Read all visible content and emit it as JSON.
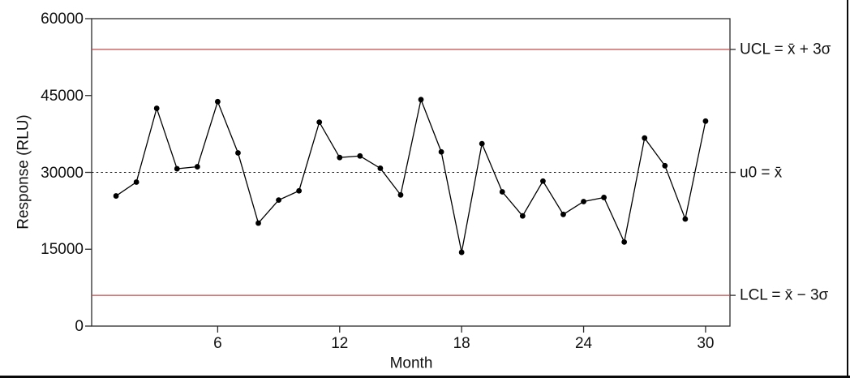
{
  "page": {
    "background": "#ffffff"
  },
  "chart_data": {
    "type": "line",
    "subtype": "control-chart",
    "title": "",
    "xlabel": "Month",
    "ylabel": "Response (RLU)",
    "x": [
      1,
      2,
      3,
      4,
      5,
      6,
      7,
      8,
      9,
      10,
      11,
      12,
      13,
      14,
      15,
      16,
      17,
      18,
      19,
      20,
      21,
      22,
      23,
      24,
      25,
      26,
      27,
      28,
      29,
      30
    ],
    "values": [
      25400,
      28100,
      42500,
      30700,
      31100,
      43800,
      33800,
      20100,
      24600,
      26400,
      39800,
      32900,
      33200,
      30800,
      25600,
      44200,
      34000,
      14400,
      35600,
      26200,
      21500,
      28300,
      21800,
      24300,
      25100,
      16400,
      36700,
      31300,
      20900,
      40000
    ],
    "x_ticks": [
      6,
      12,
      18,
      24,
      30
    ],
    "y_ticks": [
      0,
      15000,
      30000,
      45000,
      60000
    ],
    "x_range": [
      -0.2,
      31.2
    ],
    "y_range": [
      0,
      60000
    ],
    "center_line": {
      "value": 30000,
      "label": "u0 = x̄",
      "style": "dashed",
      "color": "#1a1a1a"
    },
    "upper_limit": {
      "value": 54000,
      "label": "UCL = x̄ + 3σ",
      "color": "#c24a4a"
    },
    "lower_limit": {
      "value": 6000,
      "label": "LCL = x̄ − 3σ",
      "color": "#c24a4a"
    },
    "line_color": "#000000",
    "point_color": "#000000",
    "axis_color": "#2b2b2b",
    "grid": false,
    "legend": false
  }
}
